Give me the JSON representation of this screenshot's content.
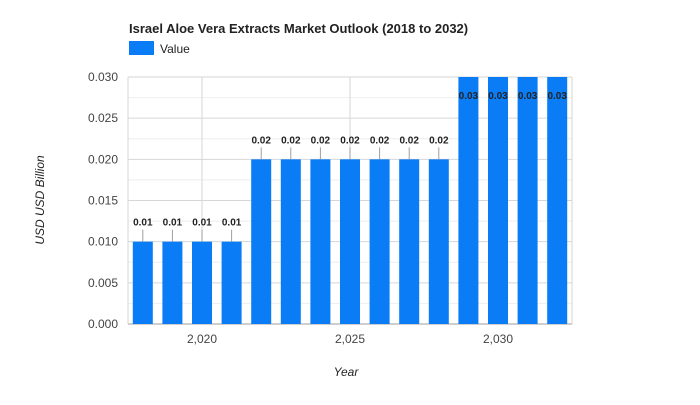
{
  "chart_data": {
    "type": "bar",
    "title": "Israel Aloe Vera Extracts Market Outlook (2018 to 2032)",
    "xlabel": "Year",
    "ylabel": "USD USD Billion",
    "legend": {
      "label": "Value",
      "position": "top-left"
    },
    "color": "#0a7cf5",
    "grid": true,
    "ylim": [
      0,
      0.03
    ],
    "y_ticks": [
      "0.000",
      "0.005",
      "0.010",
      "0.015",
      "0.020",
      "0.025",
      "0.030"
    ],
    "x_ticks": [
      "2,020",
      "2,025",
      "2,030"
    ],
    "x_tick_values": [
      2020,
      2025,
      2030
    ],
    "series": [
      {
        "name": "Value",
        "x": [
          2018,
          2019,
          2020,
          2021,
          2022,
          2023,
          2024,
          2025,
          2026,
          2027,
          2028,
          2029,
          2030,
          2031,
          2032
        ],
        "values": [
          0.01,
          0.01,
          0.01,
          0.01,
          0.02,
          0.02,
          0.02,
          0.02,
          0.02,
          0.02,
          0.02,
          0.03,
          0.03,
          0.03,
          0.03
        ],
        "labels": [
          "0.01",
          "0.01",
          "0.01",
          "0.01",
          "0.02",
          "0.02",
          "0.02",
          "0.02",
          "0.02",
          "0.02",
          "0.02",
          "0.03",
          "0.03",
          "0.03",
          "0.03"
        ]
      }
    ]
  }
}
